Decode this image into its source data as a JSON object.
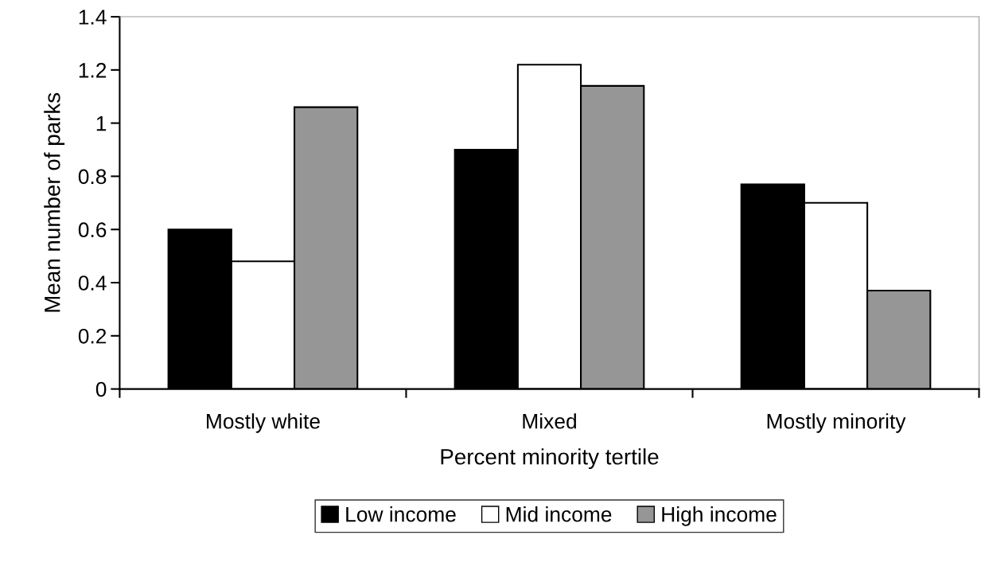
{
  "chart_data": {
    "type": "bar",
    "xlabel": "Percent minority tertile",
    "ylabel": "Mean number of parks",
    "categories": [
      "Mostly white",
      "Mixed",
      "Mostly minority"
    ],
    "series": [
      {
        "name": "Low income",
        "color": "#000000",
        "values": [
          0.6,
          0.9,
          0.77
        ]
      },
      {
        "name": "Mid income",
        "color": "#ffffff",
        "values": [
          0.48,
          1.22,
          0.7
        ]
      },
      {
        "name": "High income",
        "color": "#969696",
        "values": [
          1.06,
          1.14,
          0.37
        ]
      }
    ],
    "ylim": [
      0,
      1.4
    ],
    "yticks": [
      0,
      0.2,
      0.4,
      0.6,
      0.8,
      1,
      1.2,
      1.4
    ],
    "grid": false,
    "legend": "bottom"
  }
}
